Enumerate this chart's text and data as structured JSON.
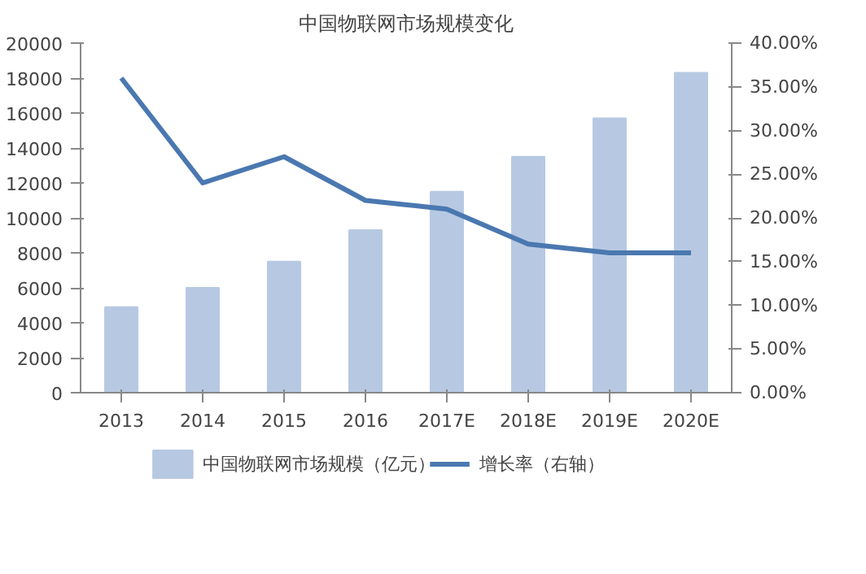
{
  "chart_data": {
    "type": "bar",
    "title": "中国物联网市场规模变化",
    "categories": [
      "2013",
      "2014",
      "2015",
      "2016",
      "2017E",
      "2018E",
      "2019E",
      "2020E"
    ],
    "series": [
      {
        "name": "中国物联网市场规模（亿元）",
        "color": "#b7c9e2",
        "values": [
          4900,
          6000,
          7500,
          9300,
          11500,
          13500,
          15700,
          18300
        ]
      },
      {
        "name": "增长率（右轴）",
        "type": "line",
        "axis": "y2",
        "color": "#4a78b0",
        "values": [
          36,
          24,
          27,
          22,
          21,
          17,
          16,
          16
        ]
      }
    ],
    "ylim": [
      0,
      20000
    ],
    "yticks": [
      0,
      2000,
      4000,
      6000,
      8000,
      10000,
      12000,
      14000,
      16000,
      18000,
      20000
    ],
    "y2lim": [
      0,
      40
    ],
    "y2ticks": [
      {
        "value": 0,
        "label": "0.00%"
      },
      {
        "value": 5,
        "label": "5.00%"
      },
      {
        "value": 10,
        "label": "10.00%"
      },
      {
        "value": 15,
        "label": "15.00%"
      },
      {
        "value": 20,
        "label": "20.00%"
      },
      {
        "value": 25,
        "label": "25.00%"
      },
      {
        "value": 30,
        "label": "30.00%"
      },
      {
        "value": 35,
        "label": "35.00%"
      },
      {
        "value": 40,
        "label": "40.00%"
      }
    ],
    "grid": false,
    "legend": "bottom",
    "marker": "none",
    "line_style": "solid"
  }
}
